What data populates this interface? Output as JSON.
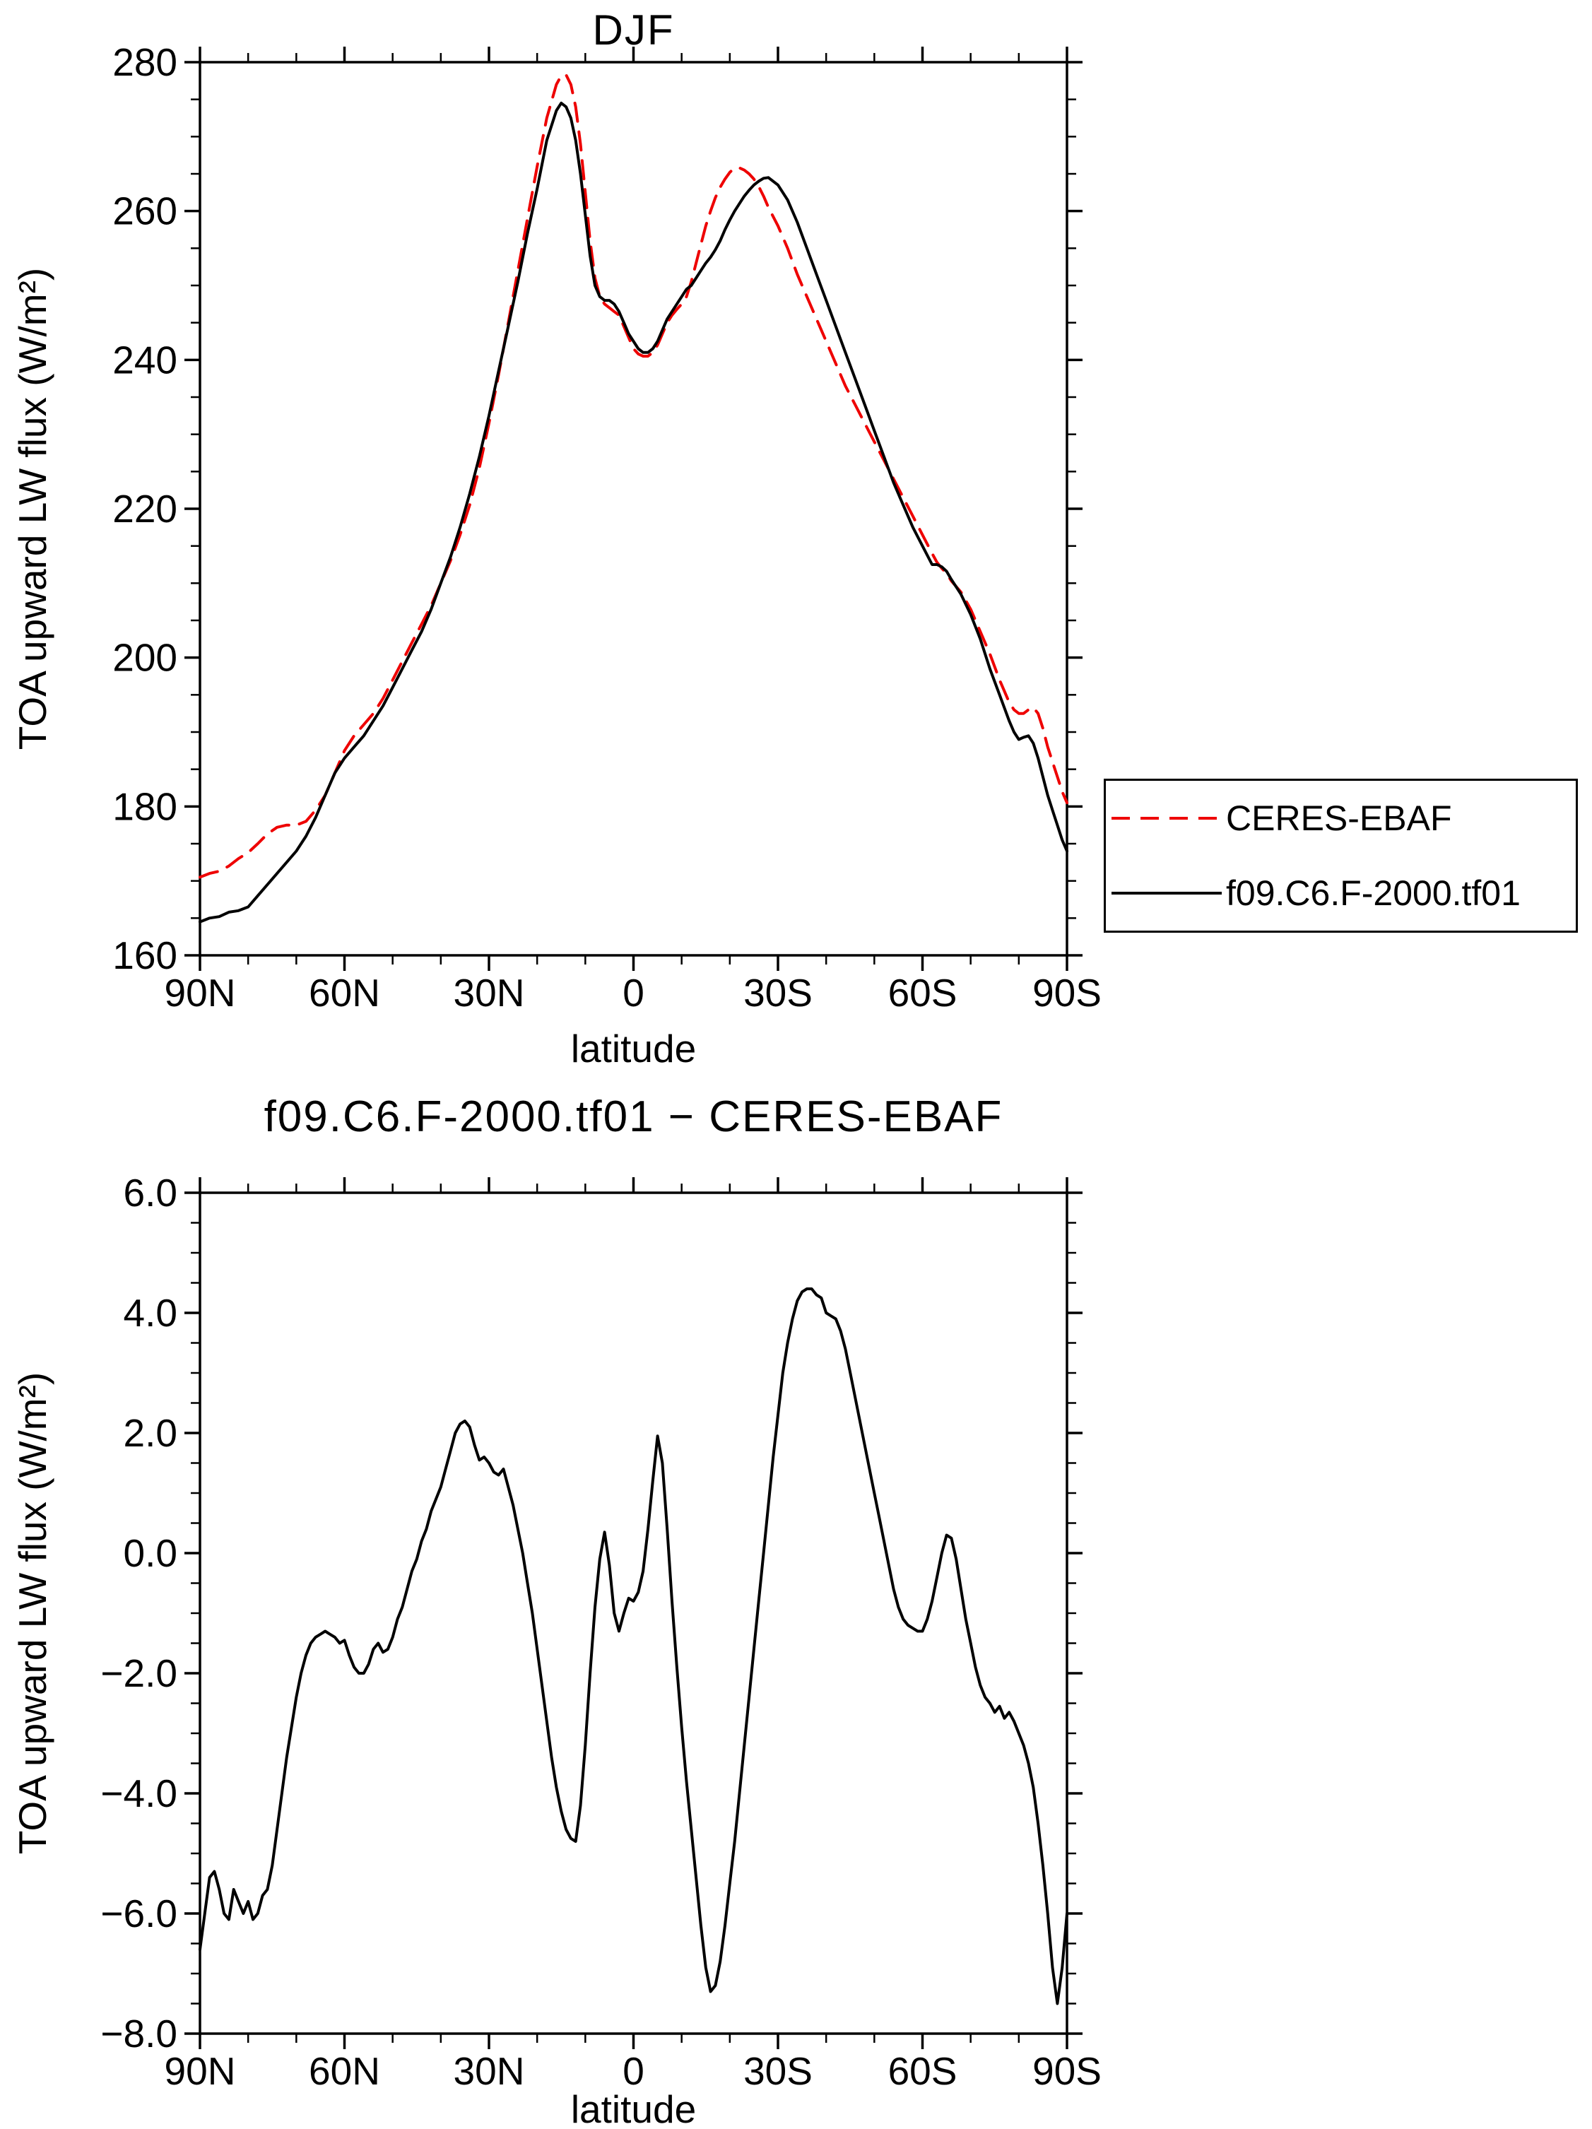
{
  "chart_data": [
    {
      "type": "line",
      "title": "DJF",
      "xlabel": "latitude",
      "ylabel": "TOA upward LW flux (W/m²)",
      "xlim": [
        90,
        -90
      ],
      "ylim": [
        160,
        280
      ],
      "x_minor_step": 10,
      "y_minor_step": 5,
      "grid": false,
      "x_ticks": [
        {
          "v": 90,
          "label": "90N"
        },
        {
          "v": 60,
          "label": "60N"
        },
        {
          "v": 30,
          "label": "30N"
        },
        {
          "v": 0,
          "label": "0"
        },
        {
          "v": -30,
          "label": "30S"
        },
        {
          "v": -60,
          "label": "60S"
        },
        {
          "v": -90,
          "label": "90S"
        }
      ],
      "y_ticks": [
        {
          "v": 160,
          "label": "160"
        },
        {
          "v": 180,
          "label": "180"
        },
        {
          "v": 200,
          "label": "200"
        },
        {
          "v": 220,
          "label": "220"
        },
        {
          "v": 240,
          "label": "240"
        },
        {
          "v": 260,
          "label": "260"
        },
        {
          "v": 280,
          "label": "280"
        }
      ],
      "legend": {
        "position": "right-middle",
        "border_color": "#000000",
        "entries": [
          "CERES-EBAF",
          "f09.C6.F-2000.tf01"
        ]
      },
      "x": [
        90,
        88,
        86,
        84,
        82,
        80,
        78,
        76,
        74,
        72,
        70,
        68,
        66,
        64,
        62,
        60,
        58,
        56,
        54,
        52,
        50,
        48,
        46,
        44,
        42,
        40,
        38,
        36,
        34,
        32,
        30,
        28,
        26,
        24,
        22,
        20,
        18,
        16,
        15,
        14,
        13,
        12,
        11,
        10,
        9,
        8,
        7,
        6,
        5,
        4,
        3,
        2,
        1,
        0,
        -1,
        -2,
        -3,
        -4,
        -5,
        -6,
        -7,
        -8,
        -9,
        -10,
        -11,
        -12,
        -13,
        -14,
        -15,
        -16,
        -17,
        -18,
        -19,
        -20,
        -21,
        -22,
        -23,
        -24,
        -25,
        -26,
        -27,
        -28,
        -30,
        -32,
        -34,
        -36,
        -38,
        -40,
        -42,
        -44,
        -46,
        -48,
        -50,
        -52,
        -54,
        -56,
        -58,
        -60,
        -62,
        -63,
        -64,
        -65,
        -66,
        -68,
        -70,
        -72,
        -74,
        -76,
        -78,
        -79,
        -80,
        -81,
        -82,
        -83,
        -84,
        -85,
        -86,
        -87,
        -88,
        -89,
        -90
      ],
      "series": [
        {
          "name": "CERES-EBAF",
          "color": "#ee0000",
          "style": "dashed",
          "values": [
            170.5,
            171,
            171.3,
            172,
            173,
            173.8,
            175,
            176.3,
            177.2,
            177.5,
            177.5,
            178,
            179.5,
            181.5,
            184.5,
            187.5,
            189.5,
            191,
            192.5,
            194.5,
            197,
            199.5,
            202,
            204.5,
            207,
            210,
            213,
            216.5,
            220.5,
            225.5,
            231.5,
            238,
            245,
            252,
            259,
            266,
            272.5,
            277,
            278.2,
            278.3,
            277,
            274,
            269,
            262.5,
            256,
            251,
            248.5,
            247.5,
            247,
            246.5,
            246,
            244.5,
            243,
            241.5,
            240.8,
            240.5,
            240.5,
            241,
            242,
            243.5,
            245,
            246,
            246.8,
            247.5,
            248.5,
            250.5,
            253,
            255.5,
            258,
            260,
            261.8,
            263.2,
            264.3,
            265.2,
            265.8,
            265.8,
            265.5,
            265,
            264.3,
            263.3,
            262,
            260.5,
            258,
            255,
            251.5,
            248.5,
            245.5,
            242.5,
            239.5,
            236.5,
            234,
            231.5,
            229,
            226.5,
            224,
            221.5,
            219,
            216.5,
            214,
            212.8,
            212,
            211.3,
            210.3,
            208.8,
            206.5,
            203.5,
            200.5,
            197,
            194,
            193,
            192.5,
            192.5,
            193,
            193.3,
            192.5,
            190.5,
            188,
            186,
            184,
            182,
            180.5
          ]
        },
        {
          "name": "f09.C6.F-2000.tf01",
          "color": "#000000",
          "style": "solid",
          "values": [
            164.5,
            165,
            165.2,
            165.8,
            166,
            166.5,
            168,
            169.5,
            171,
            172.5,
            174,
            176,
            178.5,
            181.5,
            184.5,
            186.5,
            188,
            189.5,
            191.5,
            193.5,
            196,
            198.5,
            201,
            203.5,
            206.5,
            210,
            213.5,
            217.5,
            222,
            227,
            232.5,
            238.5,
            244.5,
            250.5,
            257,
            263,
            269.5,
            273.5,
            274.5,
            274,
            272.5,
            269.5,
            265,
            259.5,
            254,
            250,
            248.5,
            248,
            248,
            247.5,
            246.5,
            245,
            243.5,
            242.5,
            241.5,
            241,
            241,
            241.5,
            242.5,
            244,
            245.5,
            246.5,
            247.5,
            248.5,
            249.5,
            250,
            251,
            252,
            253,
            253.8,
            254.8,
            256,
            257.5,
            258.8,
            260,
            261,
            262,
            262.8,
            263.5,
            264,
            264.4,
            264.5,
            263.5,
            261.5,
            258.5,
            255,
            251.5,
            248,
            244.5,
            241,
            237.5,
            234,
            230.5,
            227,
            223.5,
            220.5,
            217.5,
            215,
            212.5,
            212.5,
            212.2,
            211.6,
            210.5,
            208.5,
            205.8,
            202.5,
            198.5,
            195,
            191.5,
            190,
            189,
            189.3,
            189.5,
            188.5,
            186.5,
            184,
            181.5,
            179.5,
            177.5,
            175.5,
            174
          ]
        }
      ]
    },
    {
      "type": "line",
      "title": "f09.C6.F-2000.tf01 − CERES-EBAF",
      "xlabel": "latitude",
      "ylabel": "TOA upward LW flux (W/m²)",
      "xlim": [
        90,
        -90
      ],
      "ylim": [
        -8,
        6
      ],
      "x_minor_step": 10,
      "y_minor_step": 0.5,
      "grid": false,
      "x_ticks": [
        {
          "v": 90,
          "label": "90N"
        },
        {
          "v": 60,
          "label": "60N"
        },
        {
          "v": 30,
          "label": "30N"
        },
        {
          "v": 0,
          "label": "0"
        },
        {
          "v": -30,
          "label": "30S"
        },
        {
          "v": -60,
          "label": "60S"
        },
        {
          "v": -90,
          "label": "90S"
        }
      ],
      "y_ticks": [
        {
          "v": 6,
          "label": "6.0"
        },
        {
          "v": 4,
          "label": "4.0"
        },
        {
          "v": 2,
          "label": "2.0"
        },
        {
          "v": 0,
          "label": "0.0"
        },
        {
          "v": -2,
          "label": "−2.0"
        },
        {
          "v": -4,
          "label": "−4.0"
        },
        {
          "v": -6,
          "label": "−6.0"
        },
        {
          "v": -8,
          "label": "−8.0"
        }
      ],
      "series": [
        {
          "name": "f09.C6.F-2000.tf01 − CERES-EBAF",
          "color": "#000000",
          "style": "solid",
          "x_from": 90,
          "x_to": -90,
          "x_step": -1,
          "values": [
            -6.6,
            -6.0,
            -5.4,
            -5.3,
            -5.6,
            -6.0,
            -6.1,
            -5.6,
            -5.8,
            -6.0,
            -5.8,
            -6.1,
            -6.0,
            -5.7,
            -5.6,
            -5.2,
            -4.6,
            -4.0,
            -3.4,
            -2.9,
            -2.4,
            -2.0,
            -1.7,
            -1.5,
            -1.4,
            -1.35,
            -1.3,
            -1.35,
            -1.4,
            -1.5,
            -1.45,
            -1.7,
            -1.9,
            -2.0,
            -2.0,
            -1.85,
            -1.6,
            -1.5,
            -1.65,
            -1.6,
            -1.4,
            -1.1,
            -0.9,
            -0.6,
            -0.3,
            -0.1,
            0.2,
            0.4,
            0.7,
            0.9,
            1.1,
            1.4,
            1.7,
            2.0,
            2.15,
            2.2,
            2.1,
            1.8,
            1.55,
            1.6,
            1.5,
            1.35,
            1.3,
            1.4,
            1.1,
            0.8,
            0.4,
            0.0,
            -0.5,
            -1.0,
            -1.6,
            -2.2,
            -2.8,
            -3.4,
            -3.9,
            -4.3,
            -4.6,
            -4.75,
            -4.8,
            -4.2,
            -3.2,
            -2.0,
            -0.9,
            -0.1,
            0.35,
            -0.2,
            -1.0,
            -1.3,
            -1.0,
            -0.75,
            -0.8,
            -0.65,
            -0.3,
            0.4,
            1.2,
            1.95,
            1.5,
            0.4,
            -0.8,
            -1.9,
            -2.9,
            -3.8,
            -4.6,
            -5.4,
            -6.2,
            -6.9,
            -7.3,
            -7.2,
            -6.8,
            -6.2,
            -5.5,
            -4.8,
            -4.0,
            -3.2,
            -2.4,
            -1.6,
            -0.8,
            0.0,
            0.8,
            1.6,
            2.3,
            3.0,
            3.5,
            3.9,
            4.2,
            4.35,
            4.4,
            4.4,
            4.3,
            4.25,
            4.0,
            3.95,
            3.9,
            3.7,
            3.4,
            3.0,
            2.6,
            2.2,
            1.8,
            1.4,
            1.0,
            0.6,
            0.2,
            -0.2,
            -0.6,
            -0.9,
            -1.1,
            -1.2,
            -1.25,
            -1.3,
            -1.3,
            -1.1,
            -0.8,
            -0.4,
            0.0,
            0.3,
            0.25,
            -0.1,
            -0.6,
            -1.1,
            -1.5,
            -1.9,
            -2.2,
            -2.4,
            -2.5,
            -2.65,
            -2.55,
            -2.75,
            -2.65,
            -2.8,
            -3.0,
            -3.2,
            -3.5,
            -3.9,
            -4.5,
            -5.2,
            -6.0,
            -6.9,
            -7.5,
            -6.9,
            -6.0
          ]
        }
      ]
    }
  ]
}
